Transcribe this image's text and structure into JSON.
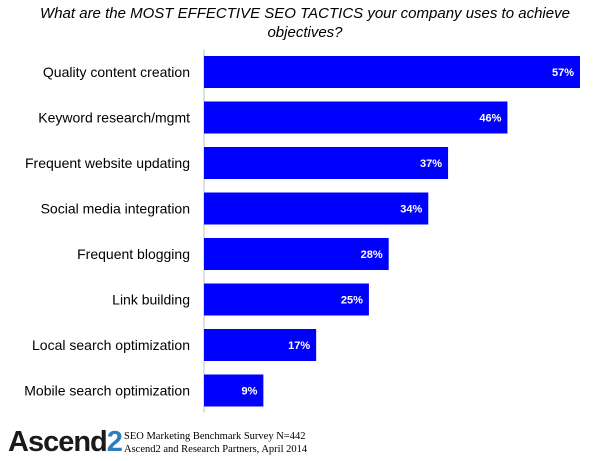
{
  "title": "What are the MOST EFFECTIVE SEO TACTICS your company uses to achieve objectives?",
  "chart_data": {
    "type": "bar",
    "orientation": "horizontal",
    "title": "What are the MOST EFFECTIVE SEO TACTICS your company uses to achieve objectives?",
    "categories": [
      "Quality content creation",
      "Keyword research/mgmt",
      "Frequent website updating",
      "Social media integration",
      "Frequent blogging",
      "Link building",
      "Local search optimization",
      "Mobile search optimization"
    ],
    "values": [
      57,
      46,
      37,
      34,
      28,
      25,
      17,
      9
    ],
    "value_labels": [
      "57%",
      "46%",
      "37%",
      "34%",
      "28%",
      "25%",
      "17%",
      "9%"
    ],
    "xlabel": "",
    "ylabel": "",
    "xlim": [
      0,
      57
    ],
    "grid": false,
    "bar_color": "#0000ff"
  },
  "logo": {
    "text_main": "Ascend",
    "text_accent": "2"
  },
  "footer": {
    "line1": "SEO Marketing Benchmark Survey N=442",
    "line2": "Ascend2 and Research Partners, April 2014"
  },
  "colors": {
    "bar": "#0000ff",
    "accent": "#2a7fc0"
  }
}
